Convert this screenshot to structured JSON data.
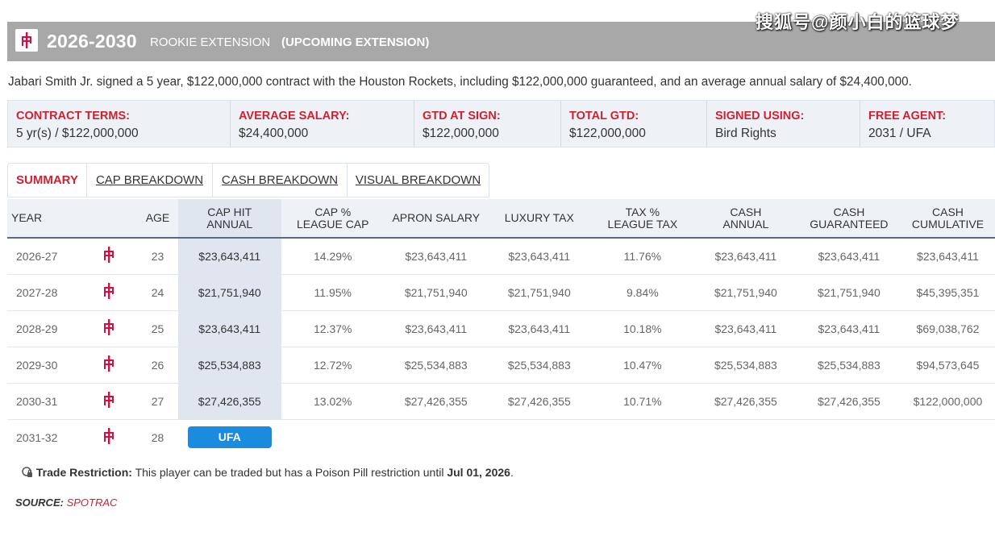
{
  "header": {
    "years": "2026-2030",
    "contract_type": "ROOKIE EXTENSION",
    "upcoming": "(UPCOMING EXTENSION)",
    "watermark": "搜狐号@颜小白的篮球梦"
  },
  "description": "Jabari Smith Jr. signed a 5 year, $122,000,000 contract with the Houston Rockets, including $122,000,000 guaranteed, and an average annual salary of $24,400,000.",
  "terms": [
    {
      "label": "CONTRACT TERMS:",
      "value": "5 yr(s) / $122,000,000"
    },
    {
      "label": "AVERAGE SALARY:",
      "value": "$24,400,000"
    },
    {
      "label": "GTD AT SIGN:",
      "value": "$122,000,000"
    },
    {
      "label": "TOTAL GTD:",
      "value": "$122,000,000"
    },
    {
      "label": "SIGNED USING:",
      "value": "Bird Rights"
    },
    {
      "label": "FREE AGENT:",
      "value": "2031 / UFA"
    }
  ],
  "tabs": [
    "SUMMARY",
    "CAP BREAKDOWN",
    "CASH BREAKDOWN",
    "VISUAL BREAKDOWN"
  ],
  "table": {
    "headers": {
      "year": "YEAR",
      "age": "AGE",
      "cap_hit_1": "CAP HIT",
      "cap_hit_2": "ANNUAL",
      "cap_pct_1": "CAP %",
      "cap_pct_2": "LEAGUE CAP",
      "apron": "APRON SALARY",
      "lux": "LUXURY TAX",
      "tax_pct_1": "TAX %",
      "tax_pct_2": "LEAGUE TAX",
      "cash_annual_1": "CASH",
      "cash_annual_2": "ANNUAL",
      "cash_gtd_1": "CASH",
      "cash_gtd_2": "GUARANTEED",
      "cash_cum_1": "CASH",
      "cash_cum_2": "CUMULATIVE"
    },
    "rows": [
      {
        "year": "2026-27",
        "age": "23",
        "cap_hit": "$23,643,411",
        "cap_pct": "14.29%",
        "apron": "$23,643,411",
        "lux": "$23,643,411",
        "tax_pct": "11.76%",
        "cash_annual": "$23,643,411",
        "cash_gtd": "$23,643,411",
        "cash_cum": "$23,643,411"
      },
      {
        "year": "2027-28",
        "age": "24",
        "cap_hit": "$21,751,940",
        "cap_pct": "11.95%",
        "apron": "$21,751,940",
        "lux": "$21,751,940",
        "tax_pct": "9.84%",
        "cash_annual": "$21,751,940",
        "cash_gtd": "$21,751,940",
        "cash_cum": "$45,395,351"
      },
      {
        "year": "2028-29",
        "age": "25",
        "cap_hit": "$23,643,411",
        "cap_pct": "12.37%",
        "apron": "$23,643,411",
        "lux": "$23,643,411",
        "tax_pct": "10.18%",
        "cash_annual": "$23,643,411",
        "cash_gtd": "$23,643,411",
        "cash_cum": "$69,038,762"
      },
      {
        "year": "2029-30",
        "age": "26",
        "cap_hit": "$25,534,883",
        "cap_pct": "12.72%",
        "apron": "$25,534,883",
        "lux": "$25,534,883",
        "tax_pct": "10.47%",
        "cash_annual": "$25,534,883",
        "cash_gtd": "$25,534,883",
        "cash_cum": "$94,573,645"
      },
      {
        "year": "2030-31",
        "age": "27",
        "cap_hit": "$27,426,355",
        "cap_pct": "13.02%",
        "apron": "$27,426,355",
        "lux": "$27,426,355",
        "tax_pct": "10.71%",
        "cash_annual": "$27,426,355",
        "cash_gtd": "$27,426,355",
        "cash_cum": "$122,000,000"
      }
    ],
    "fa_row": {
      "year": "2031-32",
      "age": "28",
      "status": "UFA"
    }
  },
  "restriction": {
    "label": "Trade Restriction:",
    "text": "This player can be traded but has a Poison Pill restriction until",
    "date": "Jul 01, 2026",
    "end": "."
  },
  "source": {
    "label": "SOURCE:",
    "name": "SPOTRAC"
  },
  "colors": {
    "accent_red": "#cf2131",
    "header_gray": "#a8a8a8",
    "ufa_blue": "#1b8be0",
    "cap_col_bg": "#dfe6f0"
  },
  "icons": {
    "team_logo": "rockets-logo-icon",
    "restriction": "lock-icon"
  }
}
